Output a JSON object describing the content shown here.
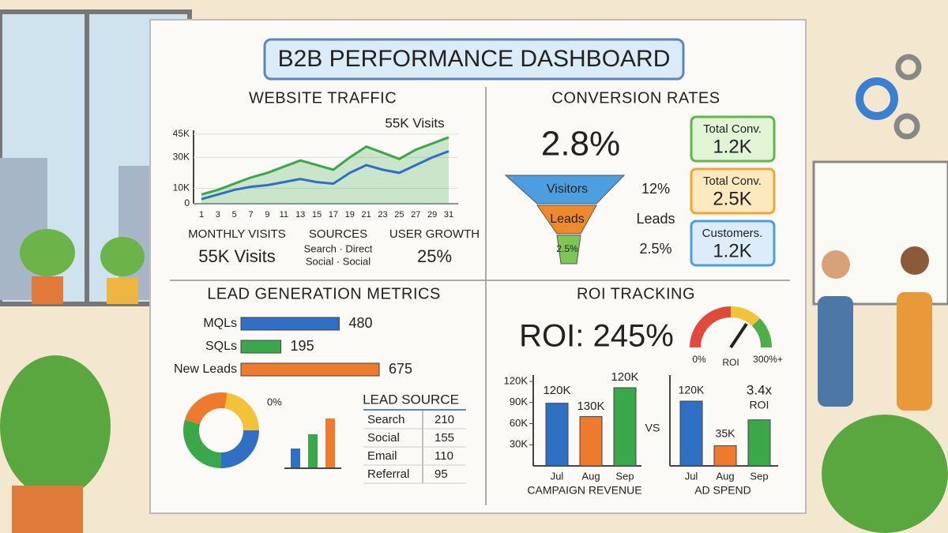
{
  "header": {
    "title": "B2B PERFORMANCE DASHBOARD"
  },
  "traffic": {
    "title": "WEBSITE TRAFFIC",
    "annotation": "55K Visits",
    "x": [
      1,
      3,
      5,
      7,
      9,
      11,
      13,
      15,
      17,
      19,
      21,
      23,
      25,
      27,
      29,
      31
    ],
    "ylim": [
      0,
      45000
    ],
    "yticks": [
      0,
      {
        "value": 10000,
        "label": "10K"
      },
      {
        "value": 30000,
        "label": "30K"
      },
      {
        "value": 45000,
        "label": "45K"
      }
    ],
    "series": [
      {
        "color": "#3aa84a",
        "values": [
          6000,
          9000,
          13000,
          17000,
          20000,
          24000,
          28000,
          25000,
          22000,
          30000,
          37000,
          33000,
          29000,
          35000,
          39000,
          43000
        ]
      },
      {
        "color": "#2f6fc4",
        "values": [
          3000,
          6000,
          9000,
          11000,
          12000,
          14000,
          16000,
          14000,
          13000,
          20000,
          25000,
          22000,
          20000,
          25000,
          30000,
          34000
        ]
      }
    ],
    "stats": [
      {
        "label": "MONTHLY VISITS",
        "lines": [
          "55K Visits"
        ]
      },
      {
        "label": "SOURCES",
        "lines": [
          "Search · Direct",
          "Social · Social"
        ]
      },
      {
        "label": "USER GROWTH",
        "lines": [
          "25%"
        ]
      }
    ]
  },
  "conversion": {
    "title": "CONVERSION RATES",
    "rate": "2.8%",
    "funnel": [
      {
        "stage": "Visitors",
        "note": "12%"
      },
      {
        "stage": "Leads",
        "note": "Leads"
      },
      {
        "stage": "2.5%",
        "note": "2.5%"
      }
    ],
    "cards": [
      {
        "label": "Total Conv.",
        "value": "1.2K"
      },
      {
        "label": "Total Conv.",
        "value": "2.5K"
      },
      {
        "label": "Customers.",
        "value": "1.2K"
      }
    ]
  },
  "leads": {
    "title": "LEAD GENERATION METRICS",
    "categories": [
      "MQLs",
      "SQLs",
      "New Leads"
    ],
    "values": [
      480,
      195,
      675
    ],
    "colors": [
      "#2f6fc4",
      "#3aa84a",
      "#ee7a2e"
    ],
    "donut_label": "0%",
    "source_table": {
      "title": "LEAD SOURCE",
      "rows": [
        [
          "Search",
          210
        ],
        [
          "Social",
          155
        ],
        [
          "Email",
          110
        ],
        [
          "Referral",
          95
        ]
      ]
    }
  },
  "roi": {
    "title": "ROI TRACKING",
    "headline": "ROI: 245%",
    "gauge": {
      "min_label": "0%",
      "center_label": "ROI",
      "max_label": "300%+"
    },
    "vs": "VS",
    "campaign": {
      "xlabel": "CAMPAIGN REVENUE",
      "categories": [
        "Jul",
        "Aug",
        "Sep"
      ],
      "values": [
        89000,
        70000,
        111000
      ],
      "colors": [
        "#2f6fc4",
        "#ee7a2e",
        "#3aa84a"
      ],
      "annotations": [
        "120K",
        "130K",
        "120K"
      ],
      "ylim": [
        0,
        120000
      ],
      "yticks": [
        {
          "value": 30000,
          "label": "30K"
        },
        {
          "value": 60000,
          "label": "60K"
        },
        {
          "value": 90000,
          "label": "90K"
        },
        {
          "value": 120000,
          "label": "120K"
        }
      ]
    },
    "adspend": {
      "xlabel": "AD SPEND",
      "categories": [
        "Jul",
        "Aug",
        "Sep"
      ],
      "values": [
        90000,
        28000,
        64000
      ],
      "colors": [
        "#2f6fc4",
        "#ee7a2e",
        "#3aa84a"
      ],
      "annotations": [
        "120K",
        "35K",
        "3.4x",
        "ROI"
      ]
    }
  }
}
